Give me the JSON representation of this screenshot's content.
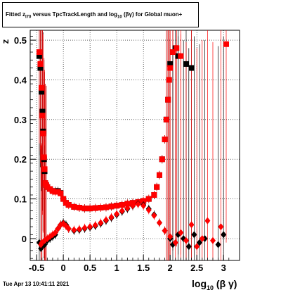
{
  "title": {
    "prefix": "Fitted  z",
    "sub1": "I70",
    "middle": " versus TpcTrackLength and log",
    "sub2": "10",
    "suffix": " (βγ) for Global muon+"
  },
  "timestamp": "Tue Apr 13 10:41:11 2021",
  "chart_data": {
    "type": "scatter",
    "title": "Fitted z_I70 versus TpcTrackLength and log10(βγ) for Global muon+",
    "xlabel": "log10(βγ)",
    "ylabel": "z",
    "xlim": [
      -0.62,
      3.3
    ],
    "ylim": [
      -0.055,
      0.525
    ],
    "xticks": [
      "-0.5",
      "0",
      "0.5",
      "1",
      "1.5",
      "2",
      "2.5",
      "3"
    ],
    "xtick_values": [
      -0.5,
      0,
      0.5,
      1,
      1.5,
      2,
      2.5,
      3
    ],
    "yticks": [
      "0",
      "0.1",
      "0.2",
      "0.3",
      "0.4",
      "0.5"
    ],
    "ytick_values": [
      0,
      0.1,
      0.2,
      0.3,
      0.4,
      0.5
    ],
    "grid": true,
    "colors": {
      "black": "#000000",
      "red": "#ff0000"
    },
    "series": [
      {
        "color": "black",
        "marker": "square",
        "values": [
          [
            -0.45,
            0.46
          ],
          [
            -0.43,
            0.43
          ],
          [
            -0.41,
            0.37
          ],
          [
            -0.39,
            0.32
          ],
          [
            -0.38,
            0.27
          ],
          [
            -0.36,
            0.2
          ],
          [
            -0.35,
            0.17
          ],
          [
            -0.34,
            0.14
          ],
          [
            -0.32,
            0.135
          ],
          [
            -0.3,
            0.13
          ],
          [
            -0.25,
            0.125
          ],
          [
            -0.2,
            0.12
          ],
          [
            -0.15,
            0.12
          ],
          [
            -0.1,
            0.12
          ],
          [
            -0.05,
            0.115
          ],
          [
            0.0,
            0.1
          ],
          [
            0.05,
            0.09
          ],
          [
            0.1,
            0.085
          ],
          [
            0.2,
            0.08
          ],
          [
            0.3,
            0.078
          ],
          [
            0.4,
            0.076
          ],
          [
            0.5,
            0.076
          ],
          [
            0.6,
            0.077
          ],
          [
            0.7,
            0.078
          ],
          [
            0.8,
            0.079
          ],
          [
            0.9,
            0.081
          ],
          [
            1.0,
            0.083
          ],
          [
            1.1,
            0.085
          ],
          [
            1.2,
            0.088
          ],
          [
            1.3,
            0.09
          ],
          [
            1.4,
            0.092
          ],
          [
            1.5,
            0.095
          ],
          [
            1.6,
            0.1
          ],
          [
            1.7,
            0.11
          ],
          [
            1.75,
            0.13
          ],
          [
            1.8,
            0.16
          ],
          [
            1.85,
            0.2
          ],
          [
            1.9,
            0.25
          ],
          [
            1.93,
            0.3
          ],
          [
            1.96,
            0.35
          ],
          [
            1.98,
            0.4
          ],
          [
            2.0,
            0.44
          ],
          [
            2.05,
            0.47
          ],
          [
            2.1,
            0.48
          ],
          [
            2.15,
            0.46
          ],
          [
            2.3,
            0.44
          ],
          [
            2.4,
            0.43
          ]
        ]
      },
      {
        "color": "red",
        "marker": "square",
        "values": [
          [
            -0.45,
            0.47
          ],
          [
            -0.43,
            0.44
          ],
          [
            -0.41,
            0.38
          ],
          [
            -0.39,
            0.31
          ],
          [
            -0.38,
            0.265
          ],
          [
            -0.36,
            0.205
          ],
          [
            -0.35,
            0.175
          ],
          [
            -0.34,
            0.14
          ],
          [
            -0.32,
            0.135
          ],
          [
            -0.3,
            0.13
          ],
          [
            -0.25,
            0.125
          ],
          [
            -0.2,
            0.12
          ],
          [
            -0.15,
            0.118
          ],
          [
            -0.1,
            0.118
          ],
          [
            -0.05,
            0.114
          ],
          [
            0.0,
            0.1
          ],
          [
            0.05,
            0.09
          ],
          [
            0.1,
            0.085
          ],
          [
            0.2,
            0.08
          ],
          [
            0.3,
            0.078
          ],
          [
            0.4,
            0.076
          ],
          [
            0.5,
            0.076
          ],
          [
            0.6,
            0.077
          ],
          [
            0.7,
            0.078
          ],
          [
            0.8,
            0.079
          ],
          [
            0.9,
            0.081
          ],
          [
            1.0,
            0.083
          ],
          [
            1.1,
            0.085
          ],
          [
            1.2,
            0.088
          ],
          [
            1.3,
            0.09
          ],
          [
            1.4,
            0.092
          ],
          [
            1.5,
            0.095
          ],
          [
            1.6,
            0.1
          ],
          [
            1.7,
            0.11
          ],
          [
            1.75,
            0.13
          ],
          [
            1.8,
            0.16
          ],
          [
            1.85,
            0.2
          ],
          [
            1.9,
            0.25
          ],
          [
            1.93,
            0.3
          ],
          [
            1.96,
            0.35
          ],
          [
            1.98,
            0.4
          ],
          [
            2.0,
            0.43
          ],
          [
            2.05,
            0.47
          ],
          [
            2.12,
            0.48
          ],
          [
            2.2,
            0.46
          ],
          [
            3.05,
            0.49
          ]
        ]
      },
      {
        "color": "black",
        "marker": "diamond",
        "values": [
          [
            -0.45,
            -0.01
          ],
          [
            -0.42,
            -0.025
          ],
          [
            -0.4,
            -0.02
          ],
          [
            -0.35,
            -0.015
          ],
          [
            -0.3,
            -0.005
          ],
          [
            -0.25,
            0.0
          ],
          [
            -0.2,
            0.005
          ],
          [
            -0.15,
            0.01
          ],
          [
            -0.1,
            0.025
          ],
          [
            -0.05,
            0.035
          ],
          [
            0.0,
            0.04
          ],
          [
            0.05,
            0.035
          ],
          [
            0.1,
            0.025
          ],
          [
            0.2,
            0.02
          ],
          [
            0.3,
            0.022
          ],
          [
            0.4,
            0.025
          ],
          [
            0.5,
            0.028
          ],
          [
            0.6,
            0.032
          ],
          [
            0.7,
            0.038
          ],
          [
            0.8,
            0.045
          ],
          [
            0.9,
            0.052
          ],
          [
            1.0,
            0.06
          ],
          [
            1.1,
            0.068
          ],
          [
            1.2,
            0.075
          ],
          [
            1.3,
            0.082
          ],
          [
            1.4,
            0.088
          ],
          [
            1.5,
            0.085
          ],
          [
            1.6,
            0.075
          ],
          [
            1.7,
            0.06
          ],
          [
            1.8,
            0.04
          ],
          [
            1.9,
            0.02
          ],
          [
            2.0,
            0.0
          ],
          [
            2.05,
            -0.015
          ],
          [
            2.15,
            0.01
          ],
          [
            2.25,
            0.0
          ],
          [
            2.35,
            -0.02
          ],
          [
            2.45,
            0.01
          ],
          [
            2.55,
            -0.01
          ],
          [
            2.65,
            0.0
          ],
          [
            2.9,
            -0.015
          ],
          [
            3.0,
            0.01
          ]
        ]
      },
      {
        "color": "red",
        "marker": "diamond",
        "values": [
          [
            -0.42,
            -0.015
          ],
          [
            -0.4,
            -0.01
          ],
          [
            -0.35,
            -0.005
          ],
          [
            -0.3,
            0.0
          ],
          [
            -0.25,
            0.005
          ],
          [
            -0.2,
            0.01
          ],
          [
            -0.15,
            0.015
          ],
          [
            -0.1,
            0.025
          ],
          [
            -0.05,
            0.035
          ],
          [
            0.0,
            0.038
          ],
          [
            0.05,
            0.032
          ],
          [
            0.1,
            0.025
          ],
          [
            0.2,
            0.022
          ],
          [
            0.3,
            0.024
          ],
          [
            0.4,
            0.027
          ],
          [
            0.5,
            0.03
          ],
          [
            0.6,
            0.034
          ],
          [
            0.7,
            0.04
          ],
          [
            0.8,
            0.047
          ],
          [
            0.9,
            0.054
          ],
          [
            1.0,
            0.062
          ],
          [
            1.1,
            0.07
          ],
          [
            1.2,
            0.077
          ],
          [
            1.3,
            0.083
          ],
          [
            1.4,
            0.087
          ],
          [
            1.5,
            0.083
          ],
          [
            1.6,
            0.072
          ],
          [
            1.7,
            0.058
          ],
          [
            1.8,
            0.04
          ],
          [
            1.9,
            0.02
          ],
          [
            2.0,
            0.005
          ],
          [
            2.1,
            -0.01
          ],
          [
            2.2,
            0.015
          ],
          [
            2.3,
            -0.005
          ],
          [
            2.4,
            0.035
          ],
          [
            2.5,
            -0.02
          ],
          [
            2.6,
            0.0
          ],
          [
            2.7,
            0.045
          ],
          [
            2.8,
            -0.005
          ],
          [
            2.95,
            0.03
          ]
        ]
      }
    ]
  }
}
